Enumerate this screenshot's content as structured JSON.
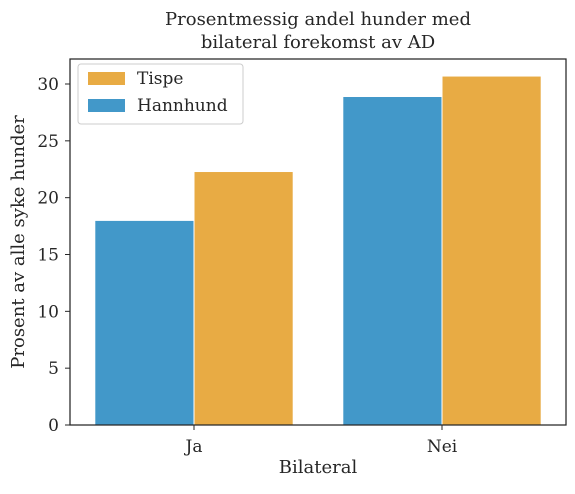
{
  "chart_data": {
    "type": "bar",
    "title_lines": [
      "Prosentmessig andel hunder med",
      "bilateral forekomst av AD"
    ],
    "xlabel": "Bilateral",
    "ylabel": "Prosent av alle syke hunder",
    "categories": [
      "Ja",
      "Nei"
    ],
    "ylim": [
      0,
      32.2
    ],
    "yticks": [
      0,
      5,
      10,
      15,
      20,
      25,
      30
    ],
    "grid": false,
    "legend_position": "top-left",
    "series": [
      {
        "name": "Hannhund",
        "color": "#4298c9",
        "values": [
          18.0,
          28.9
        ]
      },
      {
        "name": "Tispe",
        "color": "#e8ab44",
        "values": [
          22.3,
          30.7
        ]
      }
    ],
    "legend_order": [
      "Tispe",
      "Hannhund"
    ]
  }
}
